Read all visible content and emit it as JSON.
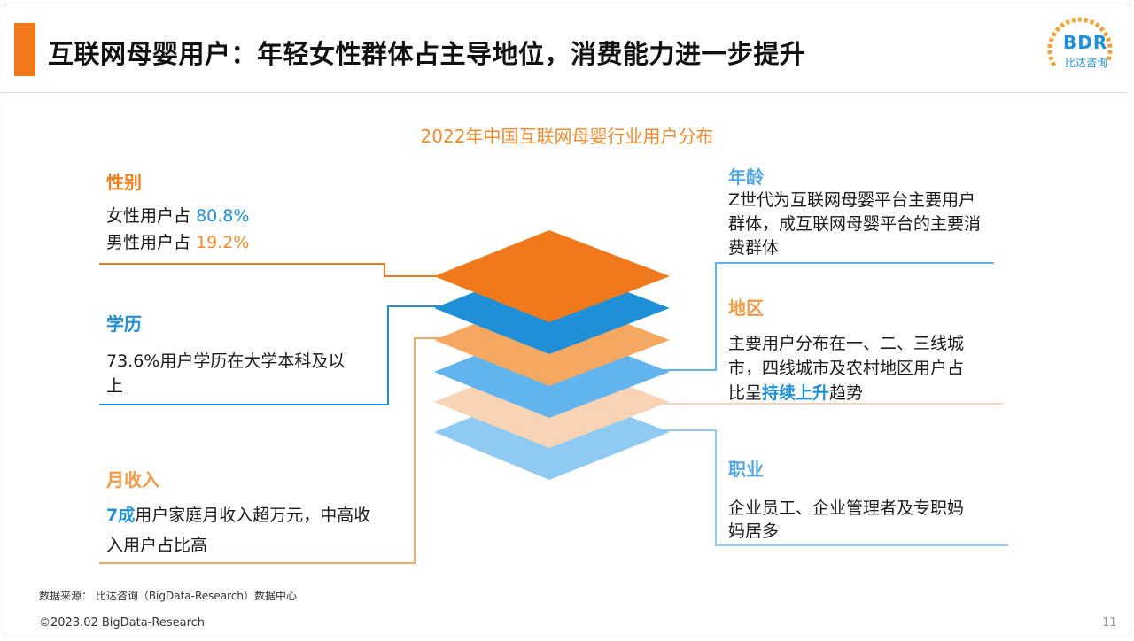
{
  "header": {
    "title": "互联网母婴用户：年轻女性群体占主导地位，消费能力进一步提升"
  },
  "logo": {
    "mark": "BDR",
    "name": "比达咨询"
  },
  "chart_title": "2022年中国互联网母婴行业用户分布",
  "sections": {
    "gender": {
      "heading": "性别",
      "female_label": "女性用户占",
      "female_value": "80.8%",
      "male_label": "男性用户占",
      "male_value": "19.2%"
    },
    "education": {
      "heading": "学历",
      "line1": "73.6%用户学历在大学本科及以",
      "line2": "上"
    },
    "income": {
      "heading": "月收入",
      "highlight": "7成",
      "line1_rest": "用户家庭月收入超万元，中高收",
      "line2": "入用户占比高"
    },
    "age": {
      "heading": "年龄",
      "line1": "Z世代为互联网母婴平台主要用户",
      "line2": "群体，成互联网母婴平台的主要消",
      "line3": "费群体"
    },
    "region": {
      "heading": "地区",
      "line1": "主要用户分布在一、二、三线城",
      "line2": "市，四线城市及农村地区用户占",
      "line3_pre": "比呈",
      "line3_highlight": "持续上升",
      "line3_post": "趋势"
    },
    "occupation": {
      "heading": "职业",
      "line1": "企业员工、企业管理者及专职妈",
      "line2": "妈居多"
    }
  },
  "footer": {
    "source": "数据来源： 比达咨询（BigData-Research）数据中心",
    "copyright": "©2023.02 BigData-Research",
    "page": "11"
  },
  "colors": {
    "orange": "#f07a1b",
    "blue": "#1f8fd8",
    "light_orange": "#f5a862",
    "light_blue": "#62b4ee",
    "peach": "#f9d3b5",
    "pale_blue": "#8fcaf3"
  }
}
